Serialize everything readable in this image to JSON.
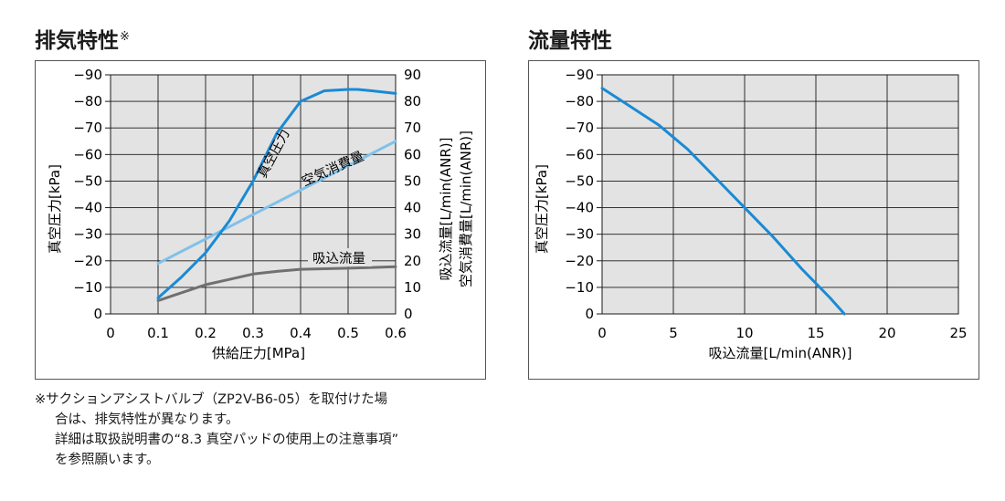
{
  "titles": {
    "left": "排気特性",
    "left_mark": "※",
    "right": "流量特性"
  },
  "footnote": {
    "line1": "※サクションアシストバルブ（ZP2V-B6-05）を取付けた場",
    "line2": "合は、排気特性が異なります。",
    "line3": "詳細は取扱説明書の“8.3 真空パッドの使用上の注意事項”",
    "line4": "を参照願います。"
  },
  "colors": {
    "blue": "#1a8ad4",
    "light_blue": "#7fc1ea",
    "gray": "#707070",
    "plot_bg": "#e3e3e3",
    "grid": "#1a1a1a"
  },
  "chart_data": [
    {
      "type": "line",
      "xlabel": "供給圧力[MPa]",
      "ylabel_left": "真空圧力[kPa]",
      "ylabel_right": "吸込流量[L/min(ANR)]",
      "ylabel_right2": "空気消費量[L/min(ANR)]",
      "xlim": [
        0,
        0.6
      ],
      "ylim_left": [
        0,
        -90
      ],
      "ylim_right": [
        0,
        90
      ],
      "x_ticks": [
        "0",
        "0.1",
        "0.2",
        "0.3",
        "0.4",
        "0.5",
        "0.6"
      ],
      "y_ticks_left": [
        "0",
        "−10",
        "−20",
        "−30",
        "−40",
        "−50",
        "−60",
        "−70",
        "−80",
        "−90"
      ],
      "y_ticks_right": [
        "0",
        "10",
        "20",
        "30",
        "40",
        "50",
        "60",
        "70",
        "80",
        "90"
      ],
      "grid": true,
      "series": [
        {
          "name": "真空圧力",
          "axis": "left",
          "color": "#1a8ad4",
          "x": [
            0.1,
            0.15,
            0.2,
            0.25,
            0.3,
            0.35,
            0.4,
            0.45,
            0.5,
            0.52,
            0.55,
            0.6
          ],
          "y": [
            -6,
            -14,
            -23,
            -35,
            -50,
            -68,
            -80,
            -84,
            -84.5,
            -84.5,
            -84,
            -83
          ]
        },
        {
          "name": "空気消費量",
          "axis": "right",
          "color": "#7fc1ea",
          "x": [
            0.1,
            0.6
          ],
          "y": [
            19,
            65
          ]
        },
        {
          "name": "吸込流量",
          "axis": "right",
          "color": "#707070",
          "x": [
            0.1,
            0.15,
            0.2,
            0.25,
            0.3,
            0.35,
            0.4,
            0.45,
            0.5,
            0.55,
            0.6
          ],
          "y": [
            5,
            8,
            11,
            13,
            15,
            16,
            16.8,
            17,
            17.2,
            17.5,
            17.8
          ]
        }
      ]
    },
    {
      "type": "line",
      "xlabel": "吸込流量[L/min(ANR)]",
      "ylabel": "真空圧力[kPa]",
      "xlim": [
        0,
        25
      ],
      "ylim": [
        0,
        -90
      ],
      "x_ticks": [
        "0",
        "5",
        "10",
        "15",
        "20",
        "25"
      ],
      "y_ticks": [
        "0",
        "−10",
        "−20",
        "−30",
        "−40",
        "−50",
        "−60",
        "−70",
        "−80",
        "−90"
      ],
      "grid": true,
      "series": [
        {
          "color": "#1a8ad4",
          "x": [
            0,
            2,
            4,
            6,
            8,
            10,
            12,
            14,
            16,
            17
          ],
          "y": [
            -85,
            -78,
            -71,
            -62,
            -51,
            -40,
            -29,
            -17,
            -6,
            0
          ]
        }
      ]
    }
  ]
}
